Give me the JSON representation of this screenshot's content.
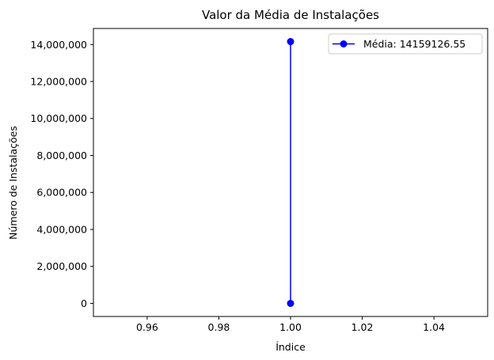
{
  "chart_data": {
    "type": "line",
    "title": "Valor da Média de Instalações",
    "xlabel": "Índice",
    "ylabel": "Número de Instalações",
    "xlim": [
      0.945,
      1.055
    ],
    "ylim": [
      -707956.33,
      14867082.88
    ],
    "x_ticks": [
      0.96,
      0.98,
      1.0,
      1.02,
      1.04
    ],
    "x_tick_labels": [
      "0.96",
      "0.98",
      "1.00",
      "1.02",
      "1.04"
    ],
    "y_ticks": [
      0,
      2000000,
      4000000,
      6000000,
      8000000,
      10000000,
      12000000,
      14000000
    ],
    "y_tick_labels": [
      "0",
      "2,000,000",
      "4,000,000",
      "6,000,000",
      "8,000,000",
      "10,000,000",
      "12,000,000",
      "14,000,000"
    ],
    "grid": false,
    "legend_position": "upper-right",
    "series": [
      {
        "name": "Média: 14159126.55",
        "color": "#0000ff",
        "marker": "circle",
        "x": [
          1.0,
          1.0
        ],
        "y": [
          0,
          14159126.55
        ]
      }
    ]
  }
}
